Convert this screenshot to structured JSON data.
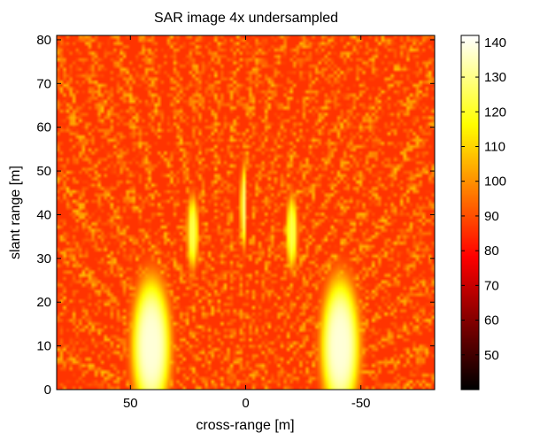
{
  "chart_data": {
    "type": "heatmap",
    "title": "SAR image 4x undersampled",
    "xlabel": "cross-range [m]",
    "ylabel": "slant range [m]",
    "xlim": [
      82,
      -82
    ],
    "ylim": [
      0,
      81
    ],
    "x_ticks": [
      50,
      0,
      -50
    ],
    "y_ticks": [
      0,
      10,
      20,
      30,
      40,
      50,
      60,
      70,
      80
    ],
    "colorbar": {
      "colormap": "hot",
      "clim": [
        40,
        142
      ],
      "ticks": [
        50,
        60,
        70,
        80,
        90,
        100,
        110,
        120,
        130,
        140
      ]
    },
    "grid": false,
    "features": [
      {
        "label": "",
        "x": 41,
        "y": 10,
        "sx": 7,
        "sy": 13,
        "peak": 138
      },
      {
        "label": "",
        "x": -41,
        "y": 10,
        "sx": 7,
        "sy": 13,
        "peak": 138
      },
      {
        "label": "",
        "x": 1,
        "y": 42,
        "sx": 1,
        "sy": 8,
        "peak": 128
      },
      {
        "label": "",
        "x": 23,
        "y": 36,
        "sx": 2,
        "sy": 7,
        "peak": 124
      },
      {
        "label": "",
        "x": -20,
        "y": 36,
        "sx": 2,
        "sy": 7,
        "peak": 124
      }
    ]
  }
}
